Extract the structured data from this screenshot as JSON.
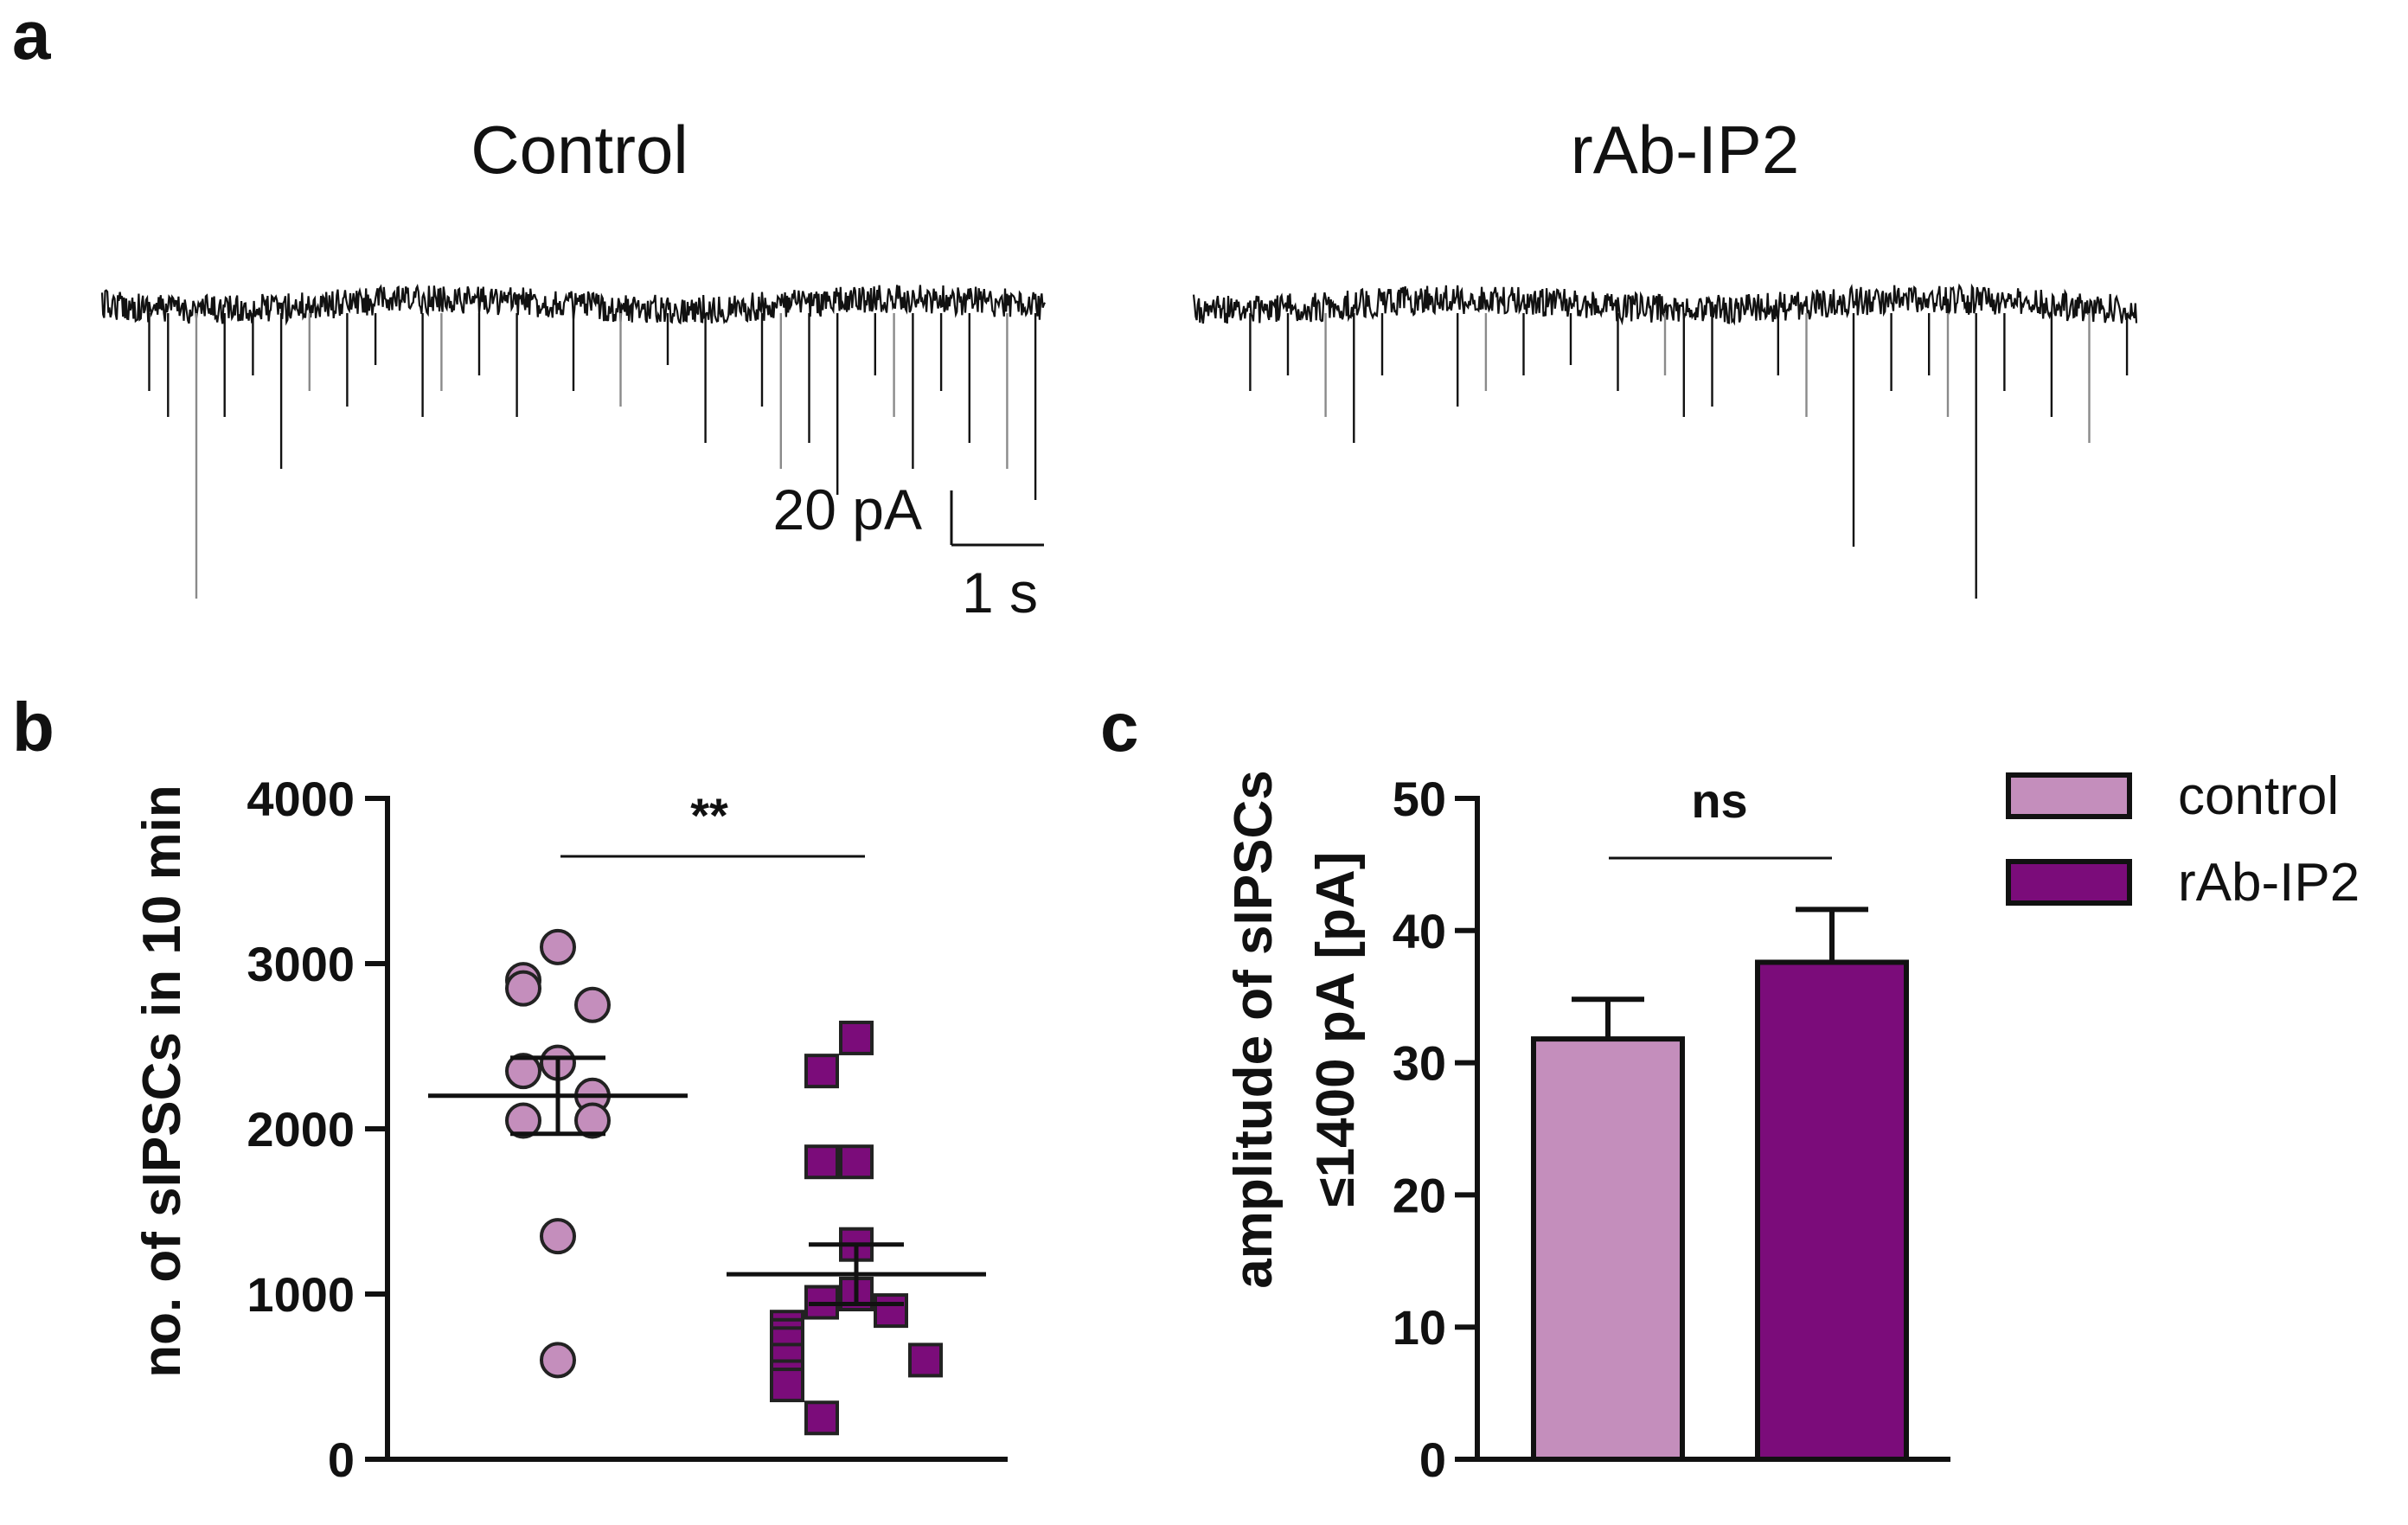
{
  "panel_labels": {
    "a": "a",
    "b": "b",
    "c": "c"
  },
  "colors": {
    "control": "#c48ebc",
    "rab": "#7b0c7a",
    "trace": "#111111",
    "trace_gray": "#8a8a8a",
    "axis": "#111111"
  },
  "chart_data": [
    {
      "type": "trace",
      "panel": "a",
      "traces": [
        {
          "title": "Control",
          "events": [
            0.05,
            0.07,
            0.1,
            0.13,
            0.16,
            0.19,
            0.22,
            0.26,
            0.29,
            0.34,
            0.36,
            0.4,
            0.44,
            0.5,
            0.55,
            0.6,
            0.64,
            0.7,
            0.72,
            0.75,
            0.78,
            0.82,
            0.84,
            0.86,
            0.89,
            0.92,
            0.96,
            0.99
          ],
          "amplitudes": [
            0.15,
            0.2,
            0.55,
            0.2,
            0.12,
            0.3,
            0.15,
            0.18,
            0.1,
            0.2,
            0.15,
            0.12,
            0.2,
            0.15,
            0.18,
            0.1,
            0.25,
            0.18,
            0.3,
            0.25,
            0.35,
            0.12,
            0.2,
            0.3,
            0.15,
            0.25,
            0.3,
            0.36
          ]
        },
        {
          "title": "rAb-IP2",
          "events": [
            0.06,
            0.1,
            0.14,
            0.17,
            0.2,
            0.28,
            0.31,
            0.35,
            0.4,
            0.45,
            0.5,
            0.52,
            0.55,
            0.62,
            0.65,
            0.7,
            0.74,
            0.78,
            0.8,
            0.83,
            0.86,
            0.91,
            0.95,
            0.99
          ],
          "amplitudes": [
            0.15,
            0.12,
            0.2,
            0.25,
            0.12,
            0.18,
            0.15,
            0.12,
            0.1,
            0.15,
            0.12,
            0.2,
            0.18,
            0.12,
            0.2,
            0.45,
            0.15,
            0.12,
            0.2,
            0.55,
            0.15,
            0.2,
            0.25,
            0.12
          ]
        }
      ],
      "scale_bar": {
        "y_label": "20 pA",
        "x_label": "1 s"
      }
    },
    {
      "type": "scatter",
      "panel": "b",
      "ylabel": "no. of sIPSCs in 10 min",
      "ylim": [
        0,
        4000
      ],
      "yticks": [
        0,
        1000,
        2000,
        3000,
        4000
      ],
      "groups": [
        {
          "name": "control",
          "marker": "circle",
          "values": [
            3100,
            2900,
            2850,
            2750,
            2400,
            2350,
            2200,
            2050,
            2050,
            1350,
            600
          ],
          "mean": 2200,
          "sem": 230
        },
        {
          "name": "rAb-IP2",
          "marker": "square",
          "values": [
            2550,
            2350,
            1800,
            1800,
            1300,
            1000,
            950,
            900,
            800,
            750,
            700,
            600,
            600,
            500,
            450,
            250
          ],
          "mean": 1120,
          "sem": 180
        }
      ],
      "significance": "**"
    },
    {
      "type": "bar",
      "panel": "c",
      "ylabel_line1": "amplitude of sIPSCs",
      "ylabel_line2": "≤1400 pA [pA]",
      "ylim": [
        0,
        50
      ],
      "yticks": [
        0,
        10,
        20,
        30,
        40,
        50
      ],
      "categories": [
        "control",
        "rAb-IP2"
      ],
      "values": [
        31.8,
        37.6
      ],
      "errors": [
        3.0,
        4.0
      ],
      "significance": "ns",
      "legend": [
        "control",
        "rAb-IP2"
      ]
    }
  ]
}
